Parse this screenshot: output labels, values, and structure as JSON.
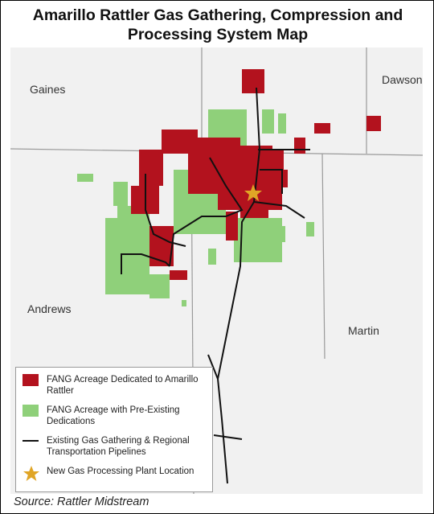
{
  "header": {
    "title": "Amarillo Rattler Gas Gathering, Compression and Processing System Map"
  },
  "map": {
    "counties": [
      {
        "label": "Gaines"
      },
      {
        "label": "Dawson"
      },
      {
        "label": "Andrews"
      },
      {
        "label": "Martin"
      }
    ]
  },
  "legend": {
    "items": [
      {
        "label": "FANG Acreage Dedicated to Amarillo Rattler"
      },
      {
        "label": "FANG Acreage with Pre-Existing Dedications"
      },
      {
        "label": "Existing Gas Gathering & Regional Transportation Pipelines"
      },
      {
        "label": "New Gas Processing Plant Location"
      }
    ]
  },
  "footer": {
    "source": "Source: Rattler Midstream"
  }
}
